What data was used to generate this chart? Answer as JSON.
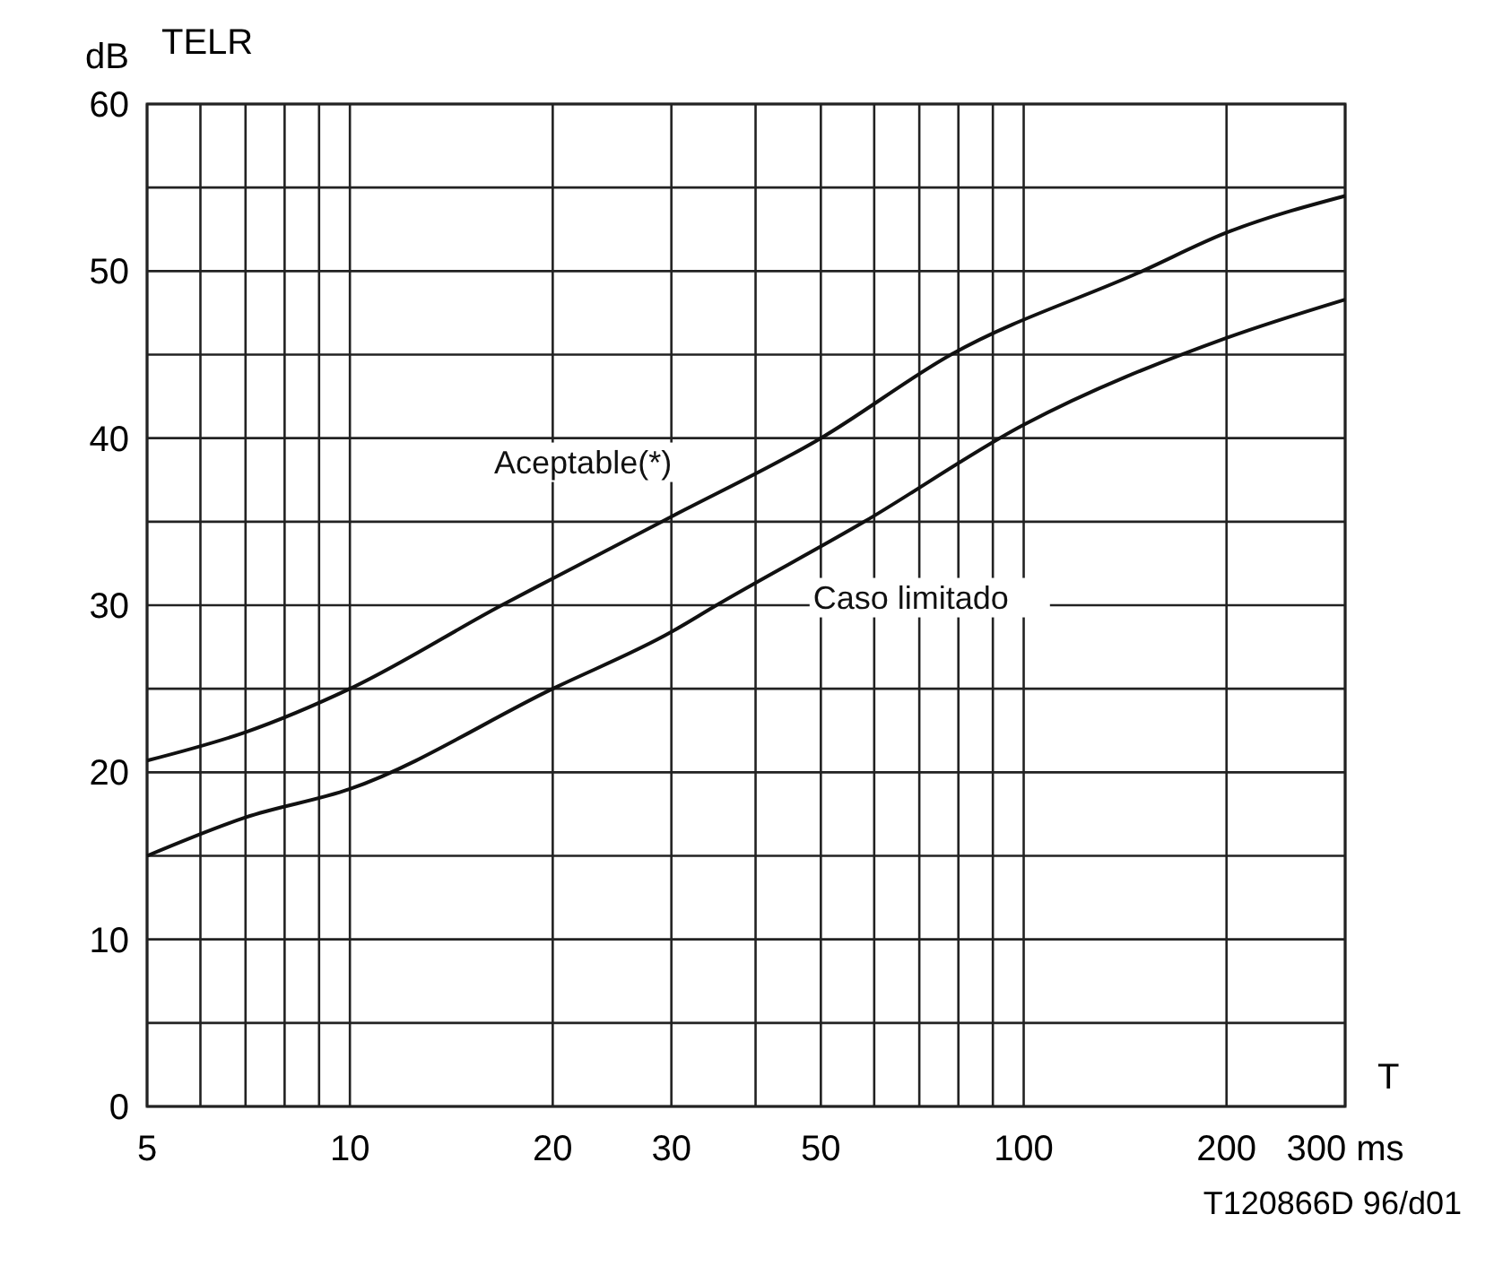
{
  "chart_data": {
    "type": "line",
    "title": "TELR",
    "ylabel": "dB",
    "xlabel": "T",
    "log": "x",
    "grid": true,
    "marker": "none",
    "line_style": "solid",
    "xlim": [
      5,
      300
    ],
    "ylim": [
      0,
      60
    ],
    "xticks": [
      5,
      {
        "value": 6,
        "label": null
      },
      {
        "value": 7,
        "label": null
      },
      {
        "value": 8,
        "label": null
      },
      {
        "value": 9,
        "label": null
      },
      10,
      20,
      30,
      {
        "value": 40,
        "label": null
      },
      50,
      {
        "value": 60,
        "label": null
      },
      {
        "value": 70,
        "label": null
      },
      {
        "value": 80,
        "label": null
      },
      {
        "value": 90,
        "label": null
      },
      100,
      200,
      {
        "value": 300,
        "label": "300 ms"
      }
    ],
    "yticks": [
      0,
      {
        "value": 5,
        "label": null
      },
      10,
      {
        "value": 15,
        "label": null
      },
      20,
      {
        "value": 25,
        "label": null
      },
      30,
      {
        "value": 35,
        "label": null
      },
      40,
      {
        "value": 45,
        "label": null
      },
      50,
      {
        "value": 55,
        "label": null
      },
      60
    ],
    "series": [
      {
        "name": "Aceptable(*)",
        "color": "#111111",
        "x": [
          5,
          7,
          10,
          16.8,
          20,
          30,
          50,
          78,
          150,
          200,
          300
        ],
        "values": [
          20.7,
          22.4,
          25,
          30,
          31.6,
          35.3,
          40,
          45,
          50,
          52.3,
          54.5
        ]
      },
      {
        "name": "Caso limitado",
        "color": "#111111",
        "x": [
          5,
          7,
          10,
          20,
          30,
          35,
          58,
          100,
          200,
          300
        ],
        "values": [
          15,
          17.3,
          19,
          25,
          28.4,
          30,
          35,
          40.8,
          46,
          48.3
        ]
      }
    ],
    "annotations": [
      "T120866D 96/d01"
    ]
  }
}
